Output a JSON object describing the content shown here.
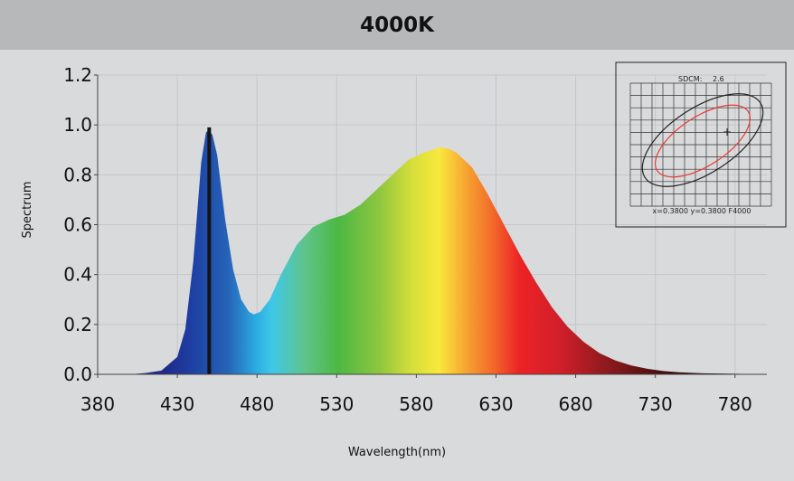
{
  "chart_data": {
    "type": "area",
    "title": "4000K",
    "xlabel": "Wavelength(nm)",
    "ylabel": "Spectrum",
    "xlim": [
      380,
      800
    ],
    "ylim": [
      0,
      1.2
    ],
    "x_ticks": [
      "380",
      "430",
      "480",
      "530",
      "580",
      "630",
      "680",
      "730",
      "780"
    ],
    "y_ticks": [
      "0.0",
      "0.2",
      "0.4",
      "0.6",
      "0.8",
      "1.0",
      "1.2"
    ],
    "grid": true,
    "peak_marker_x": 450,
    "series": [
      {
        "points": [
          [
            380,
            0.0
          ],
          [
            400,
            0.0
          ],
          [
            410,
            0.005
          ],
          [
            420,
            0.015
          ],
          [
            430,
            0.07
          ],
          [
            435,
            0.18
          ],
          [
            440,
            0.45
          ],
          [
            445,
            0.85
          ],
          [
            448,
            0.97
          ],
          [
            450,
            0.98
          ],
          [
            452,
            0.96
          ],
          [
            455,
            0.88
          ],
          [
            460,
            0.62
          ],
          [
            465,
            0.42
          ],
          [
            470,
            0.3
          ],
          [
            475,
            0.25
          ],
          [
            478,
            0.24
          ],
          [
            482,
            0.25
          ],
          [
            488,
            0.3
          ],
          [
            495,
            0.4
          ],
          [
            505,
            0.52
          ],
          [
            515,
            0.59
          ],
          [
            525,
            0.62
          ],
          [
            535,
            0.64
          ],
          [
            545,
            0.68
          ],
          [
            555,
            0.74
          ],
          [
            565,
            0.8
          ],
          [
            575,
            0.86
          ],
          [
            585,
            0.89
          ],
          [
            595,
            0.91
          ],
          [
            600,
            0.905
          ],
          [
            605,
            0.89
          ],
          [
            615,
            0.83
          ],
          [
            625,
            0.72
          ],
          [
            635,
            0.6
          ],
          [
            645,
            0.48
          ],
          [
            655,
            0.37
          ],
          [
            665,
            0.27
          ],
          [
            675,
            0.19
          ],
          [
            685,
            0.13
          ],
          [
            695,
            0.085
          ],
          [
            705,
            0.055
          ],
          [
            715,
            0.035
          ],
          [
            725,
            0.022
          ],
          [
            735,
            0.013
          ],
          [
            745,
            0.008
          ],
          [
            760,
            0.004
          ],
          [
            780,
            0.002
          ],
          [
            800,
            0.0
          ]
        ]
      }
    ],
    "inset": {
      "label_sdcm": "SDCM:",
      "sdcm_value": "2.6",
      "coords": "x=0.3800 y=0.3800 F4000"
    }
  },
  "colors": {
    "background": "#d9dadc",
    "title_bar": "#b7b8ba",
    "inner_ellipse": "#e83a32",
    "outer_ellipse": "#222222"
  }
}
